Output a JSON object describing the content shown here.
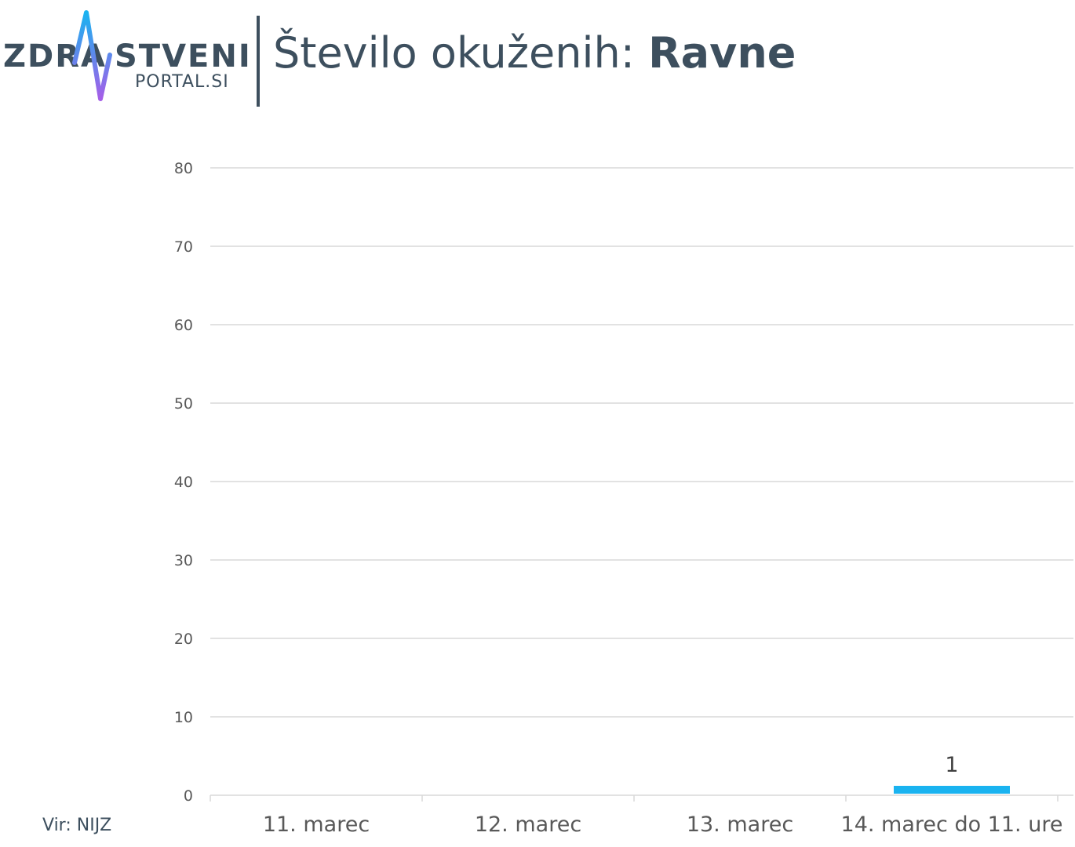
{
  "header": {
    "logo_left": "ZDRA",
    "logo_right": "STVENI",
    "logo_sub": "PORTAL.SI",
    "title_prefix": "Število okuženih: ",
    "title_place": "Ravne"
  },
  "source": "Vir: NIJZ",
  "colors": {
    "text": "#3d4f5e",
    "bar": "#1ab3f0",
    "grid": "#d9d9d9",
    "pulse_start": "#1ab3f0",
    "pulse_end": "#a55ee8"
  },
  "chart_data": {
    "type": "bar",
    "categories": [
      "11. marec",
      "12. marec",
      "13. marec",
      "14. marec do 11. ure"
    ],
    "values": [
      0,
      0,
      0,
      1
    ],
    "data_labels": [
      "",
      "",
      "",
      "1"
    ],
    "title": "Število okuženih: Ravne",
    "xlabel": "",
    "ylabel": "",
    "ylim": [
      0,
      80
    ],
    "yticks": [
      0,
      10,
      20,
      30,
      40,
      50,
      60,
      70,
      80
    ],
    "grid": true,
    "legend": "none"
  }
}
